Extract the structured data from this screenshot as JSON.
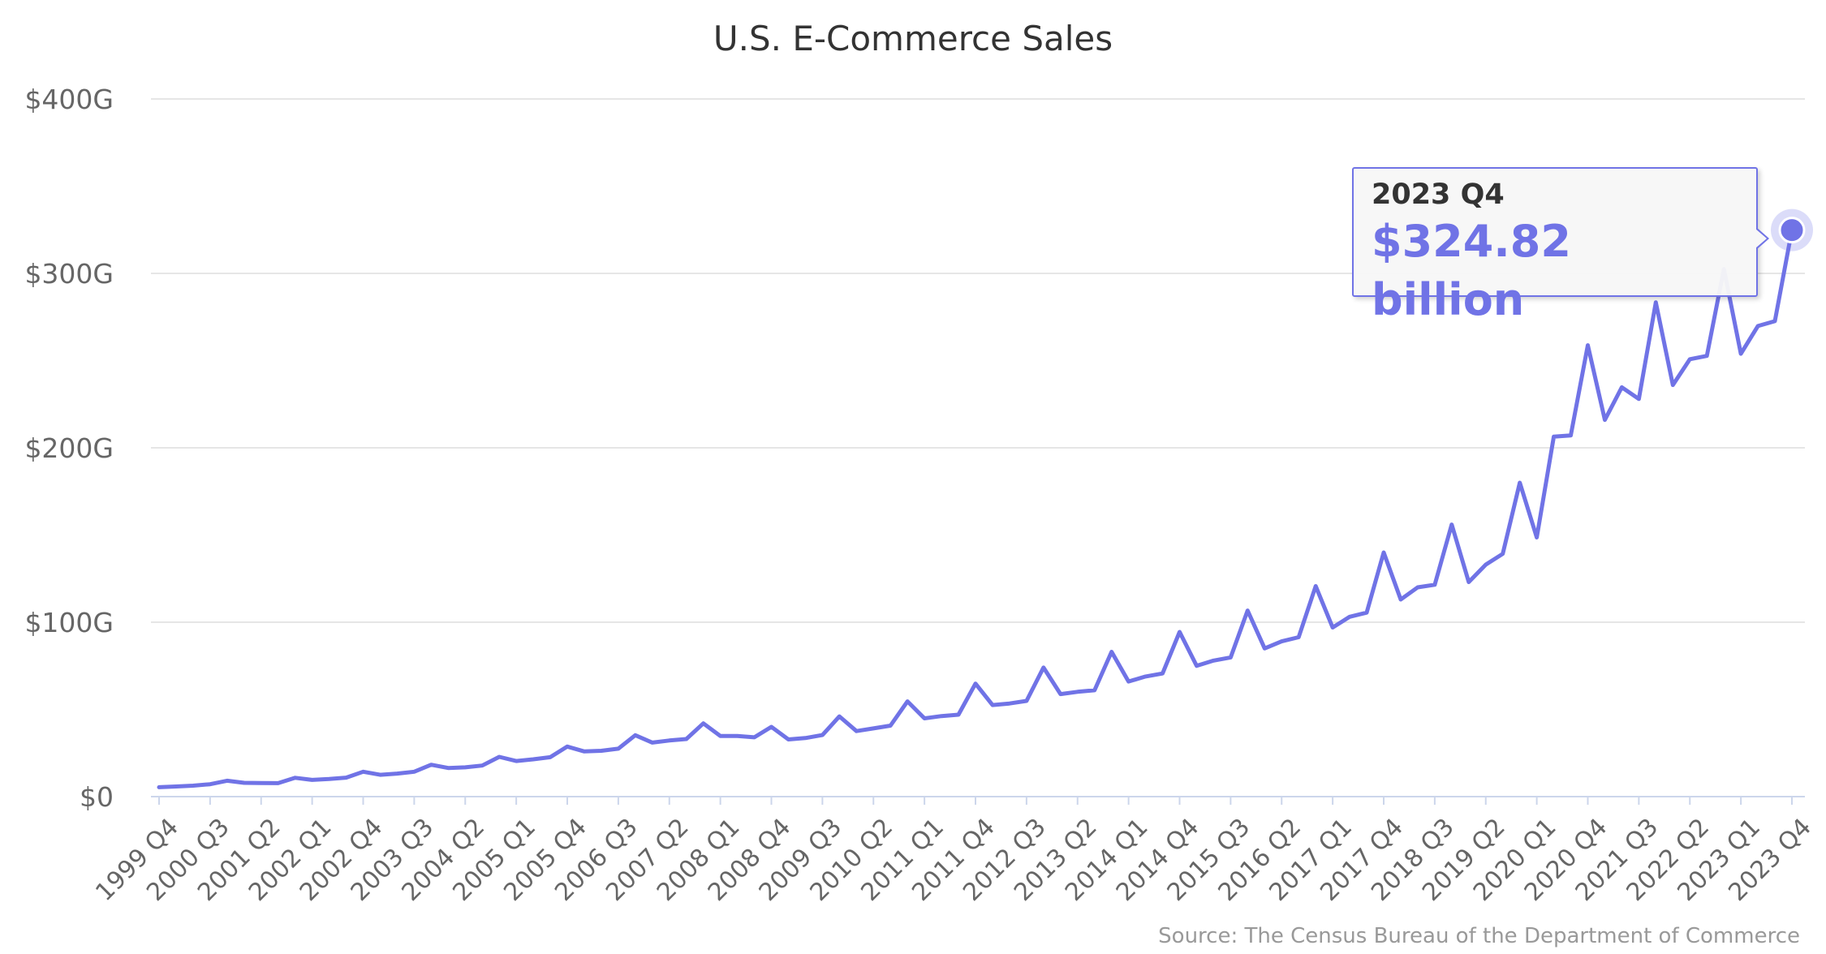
{
  "chart_data": {
    "type": "line",
    "title": "U.S. E-Commerce Sales",
    "xlabel": "",
    "ylabel": "",
    "y_tick_labels": [
      "$0",
      "$100G",
      "$200G",
      "$300G",
      "$400G"
    ],
    "y_tick_values": [
      0,
      100,
      200,
      300,
      400
    ],
    "ylim": [
      0,
      400
    ],
    "x_tick_labels": [
      "1999 Q4",
      "2000 Q3",
      "2001 Q2",
      "2002 Q1",
      "2002 Q4",
      "2003 Q3",
      "2004 Q2",
      "2005 Q1",
      "2005 Q4",
      "2006 Q3",
      "2007 Q2",
      "2008 Q1",
      "2008 Q4",
      "2009 Q3",
      "2010 Q2",
      "2011 Q1",
      "2011 Q4",
      "2012 Q3",
      "2013 Q2",
      "2014 Q1",
      "2014 Q4",
      "2015 Q3",
      "2016 Q2",
      "2017 Q1",
      "2017 Q4",
      "2018 Q3",
      "2019 Q2",
      "2020 Q1",
      "2020 Q4",
      "2021 Q3",
      "2022 Q2",
      "2023 Q1",
      "2023 Q4"
    ],
    "grid": true,
    "legend": "none",
    "source": "Source: The Census Bureau of the Department of Commerce",
    "series": [
      {
        "color": "#7073e6",
        "values": [
          5.4,
          5.8,
          6.3,
          7.1,
          9.1,
          7.9,
          7.8,
          7.7,
          10.8,
          9.6,
          10.1,
          10.9,
          14.3,
          12.5,
          13.2,
          14.3,
          18.3,
          16.4,
          16.8,
          17.8,
          22.8,
          20.4,
          21.4,
          22.6,
          28.7,
          25.9,
          26.3,
          27.5,
          35.2,
          31.0,
          32.2,
          33.0,
          42.0,
          34.8,
          34.8,
          34.0,
          40.0,
          32.8,
          33.6,
          35.3,
          46.0,
          37.6,
          39.1,
          40.7,
          54.6,
          44.9,
          46.2,
          47.0,
          64.8,
          52.5,
          53.4,
          54.9,
          74.0,
          58.8,
          60.1,
          61.0,
          83.0,
          66.0,
          68.9,
          70.6,
          94.4,
          75.0,
          78.0,
          79.8,
          106.7,
          85.0,
          89.0,
          91.4,
          120.7,
          97.0,
          103.1,
          105.5,
          140.0,
          113.0,
          120.0,
          121.5,
          156.0,
          123.0,
          133.0,
          139.2,
          180.0,
          148.6,
          206.4,
          207.1,
          258.8,
          216.0,
          234.7,
          228.0,
          283.4,
          236.0,
          250.8,
          252.7,
          302.5,
          253.9,
          269.8,
          272.6,
          324.82
        ]
      }
    ],
    "tooltip": {
      "label": "2023 Q4",
      "value": "$324.82 billion"
    }
  }
}
